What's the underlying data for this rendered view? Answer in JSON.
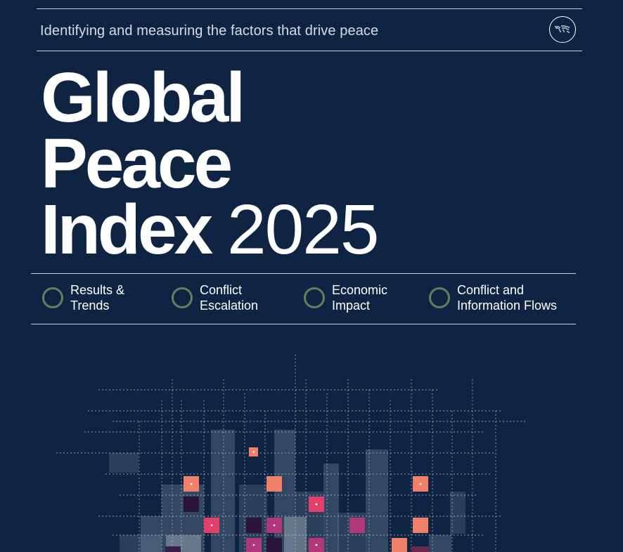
{
  "header": {
    "tagline": "Identifying and measuring the factors that drive peace",
    "logo_icon": "globe-dots-icon"
  },
  "title": {
    "line1": "Global",
    "line2": "Peace",
    "line3_bold": "Index",
    "line3_year": "2025"
  },
  "sections": [
    {
      "line1": "Results &",
      "line2": "Trends",
      "icon": "ring-icon"
    },
    {
      "line1": "Conflict",
      "line2": "Escalation",
      "icon": "ring-icon"
    },
    {
      "line1": "Economic",
      "line2": "Impact",
      "icon": "ring-icon"
    },
    {
      "line1": "Conflict and",
      "line2": "Information Flows",
      "icon": "ring-icon"
    }
  ],
  "colors": {
    "background": "#0f2442",
    "ring": "#5f8262",
    "salmon": "#f0806a",
    "pink": "#e0406a",
    "magenta": "#b03878",
    "plum": "#2a1438"
  }
}
